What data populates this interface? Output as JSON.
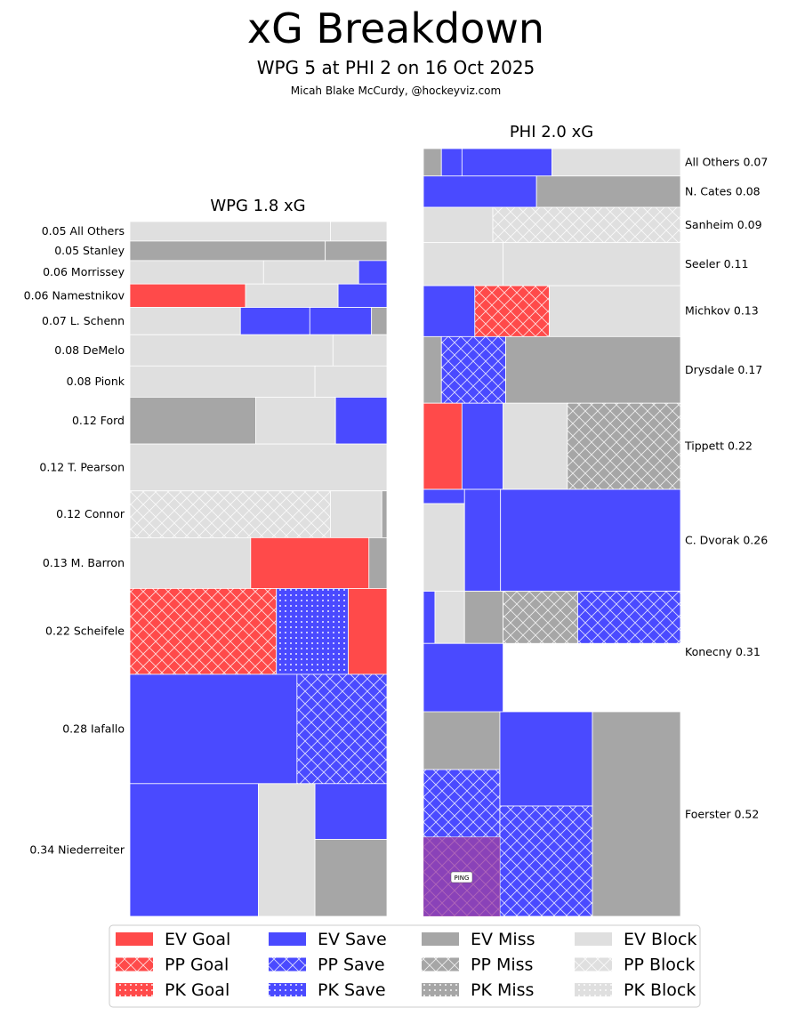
{
  "chart_data": {
    "type": "treemap",
    "title": "xG Breakdown",
    "subtitle": "WPG 5 at PHI 2 on 16 Oct 2025",
    "credit": "Micah Blake McCurdy, @hockeyviz.com",
    "annotation": "PING",
    "colors": {
      "goal": "#ff4a4a",
      "save": "#4a4aff",
      "miss": "#a6a6a6",
      "block": "#dfdfdf",
      "ping_overlay": "#a040a0"
    },
    "legend": [
      {
        "label": "EV Goal",
        "kind": "goal",
        "strength": "EV"
      },
      {
        "label": "EV Save",
        "kind": "save",
        "strength": "EV"
      },
      {
        "label": "EV Miss",
        "kind": "miss",
        "strength": "EV"
      },
      {
        "label": "EV Block",
        "kind": "block",
        "strength": "EV"
      },
      {
        "label": "PP Goal",
        "kind": "goal",
        "strength": "PP"
      },
      {
        "label": "PP Save",
        "kind": "save",
        "strength": "PP"
      },
      {
        "label": "PP Miss",
        "kind": "miss",
        "strength": "PP"
      },
      {
        "label": "PP Block",
        "kind": "block",
        "strength": "PP"
      },
      {
        "label": "PK Goal",
        "kind": "goal",
        "strength": "PK"
      },
      {
        "label": "PK Save",
        "kind": "save",
        "strength": "PK"
      },
      {
        "label": "PK Miss",
        "kind": "miss",
        "strength": "PK"
      },
      {
        "label": "PK Block",
        "kind": "block",
        "strength": "PK"
      }
    ],
    "teams": [
      {
        "side": "left",
        "title": "WPG 1.8 xG",
        "total_xg": 1.8,
        "players": [
          {
            "name": "All Others",
            "label": "0.05 All Others",
            "xg": 0.05,
            "shots": [
              {
                "type": "block",
                "str": "EV",
                "w": 0.78
              },
              {
                "type": "block",
                "str": "EV",
                "w": 0.22
              }
            ]
          },
          {
            "name": "Stanley",
            "label": "0.05 Stanley",
            "xg": 0.05,
            "shots": [
              {
                "type": "miss",
                "str": "EV",
                "w": 0.76
              },
              {
                "type": "miss",
                "str": "EV",
                "w": 0.24
              }
            ]
          },
          {
            "name": "Morrissey",
            "label": "0.06 Morrissey",
            "xg": 0.06,
            "shots": [
              {
                "type": "block",
                "str": "EV",
                "w": 0.52
              },
              {
                "type": "block",
                "str": "EV",
                "w": 0.37
              },
              {
                "type": "save",
                "str": "EV",
                "w": 0.11
              }
            ]
          },
          {
            "name": "Namestnikov",
            "label": "0.06 Namestnikov",
            "xg": 0.06,
            "shots": [
              {
                "type": "goal",
                "str": "EV",
                "w": 0.45
              },
              {
                "type": "block",
                "str": "EV",
                "w": 0.36
              },
              {
                "type": "save",
                "str": "EV",
                "w": 0.19
              }
            ]
          },
          {
            "name": "L. Schenn",
            "label": "0.07 L. Schenn",
            "xg": 0.07,
            "shots": [
              {
                "type": "block",
                "str": "EV",
                "w": 0.43
              },
              {
                "type": "save",
                "str": "EV",
                "w": 0.27
              },
              {
                "type": "save",
                "str": "EV",
                "w": 0.24
              },
              {
                "type": "miss",
                "str": "EV",
                "w": 0.06
              }
            ]
          },
          {
            "name": "DeMelo",
            "label": "0.08 DeMelo",
            "xg": 0.08,
            "shots": [
              {
                "type": "block",
                "str": "EV",
                "w": 0.79
              },
              {
                "type": "block",
                "str": "EV",
                "w": 0.21
              }
            ]
          },
          {
            "name": "Pionk",
            "label": "0.08 Pionk",
            "xg": 0.08,
            "shots": [
              {
                "type": "block",
                "str": "EV",
                "w": 0.72
              },
              {
                "type": "block",
                "str": "EV",
                "w": 0.28
              }
            ]
          },
          {
            "name": "Ford",
            "label": "0.12 Ford",
            "xg": 0.12,
            "shots": [
              {
                "type": "miss",
                "str": "EV",
                "w": 0.49
              },
              {
                "type": "block",
                "str": "EV",
                "w": 0.31
              },
              {
                "type": "save",
                "str": "EV",
                "w": 0.2
              }
            ]
          },
          {
            "name": "T. Pearson",
            "label": "0.12 T. Pearson",
            "xg": 0.12,
            "shots": [
              {
                "type": "block",
                "str": "EV",
                "w": 1.0
              }
            ]
          },
          {
            "name": "Connor",
            "label": "0.12 Connor",
            "xg": 0.12,
            "shots": [
              {
                "type": "block",
                "str": "PP",
                "w": 0.78
              },
              {
                "type": "block",
                "str": "EV",
                "w": 0.2
              },
              {
                "type": "miss",
                "str": "EV",
                "w": 0.02
              }
            ]
          },
          {
            "name": "M. Barron",
            "label": "0.13 M. Barron",
            "xg": 0.13,
            "shots": [
              {
                "type": "block",
                "str": "EV",
                "w": 0.47
              },
              {
                "type": "goal",
                "str": "EV",
                "w": 0.46
              },
              {
                "type": "miss",
                "str": "EV",
                "w": 0.07
              }
            ]
          },
          {
            "name": "Scheifele",
            "label": "0.22 Scheifele",
            "xg": 0.22,
            "shots": [
              {
                "type": "goal",
                "str": "PP",
                "w": 0.57
              },
              {
                "type": "save",
                "str": "PK",
                "w": 0.28
              },
              {
                "type": "goal",
                "str": "EV",
                "w": 0.15
              }
            ]
          },
          {
            "name": "Iafallo",
            "label": "0.28 Iafallo",
            "xg": 0.28,
            "shots": [
              {
                "type": "save",
                "str": "EV",
                "w": 0.65
              },
              {
                "type": "save",
                "str": "PP",
                "w": 0.35
              }
            ]
          },
          {
            "name": "Niederreiter",
            "label": "0.34 Niederreiter",
            "xg": 0.34,
            "shots": [
              {
                "type": "save",
                "str": "EV",
                "w": 0.5
              },
              {
                "type": "block",
                "str": "EV",
                "w": 0.22
              },
              {
                "type": "save",
                "str": "EV",
                "w": 0.28,
                "split": 0.42,
                "under": "miss"
              }
            ]
          }
        ]
      },
      {
        "side": "right",
        "title": "PHI 2.0 xG",
        "total_xg": 2.0,
        "players": [
          {
            "name": "All Others",
            "label": "All Others 0.07",
            "xg": 0.07,
            "shots": [
              {
                "type": "miss",
                "str": "EV",
                "w": 0.07
              },
              {
                "type": "save",
                "str": "EV",
                "w": 0.08
              },
              {
                "type": "save",
                "str": "EV",
                "w": 0.35
              },
              {
                "type": "block",
                "str": "EV",
                "w": 0.5
              }
            ]
          },
          {
            "name": "N. Cates",
            "label": "N. Cates 0.08",
            "xg": 0.08,
            "shots": [
              {
                "type": "save",
                "str": "EV",
                "w": 0.44
              },
              {
                "type": "miss",
                "str": "EV",
                "w": 0.56
              }
            ]
          },
          {
            "name": "Sanheim",
            "label": "Sanheim 0.09",
            "xg": 0.09,
            "shots": [
              {
                "type": "block",
                "str": "EV",
                "w": 0.27
              },
              {
                "type": "block",
                "str": "PP",
                "w": 0.73
              }
            ]
          },
          {
            "name": "Seeler",
            "label": "Seeler 0.11",
            "xg": 0.11,
            "shots": [
              {
                "type": "block",
                "str": "EV",
                "w": 0.31
              },
              {
                "type": "block",
                "str": "EV",
                "w": 0.69
              }
            ]
          },
          {
            "name": "Michkov",
            "label": "Michkov 0.13",
            "xg": 0.13,
            "shots": [
              {
                "type": "save",
                "str": "EV",
                "w": 0.2
              },
              {
                "type": "goal",
                "str": "PP",
                "w": 0.29
              },
              {
                "type": "block",
                "str": "EV",
                "w": 0.51
              }
            ]
          },
          {
            "name": "Drysdale",
            "label": "Drysdale 0.17",
            "xg": 0.17,
            "shots": [
              {
                "type": "miss",
                "str": "EV",
                "w": 0.07
              },
              {
                "type": "save",
                "str": "PP",
                "w": 0.25
              },
              {
                "type": "miss",
                "str": "EV",
                "w": 0.68
              }
            ]
          },
          {
            "name": "Tippett",
            "label": "Tippett 0.22",
            "xg": 0.22,
            "shots": [
              {
                "type": "goal",
                "str": "EV",
                "w": 0.15
              },
              {
                "type": "save",
                "str": "EV",
                "w": 0.16
              },
              {
                "type": "block",
                "str": "EV",
                "w": 0.25
              },
              {
                "type": "miss",
                "str": "PP",
                "w": 0.44
              }
            ]
          },
          {
            "name": "C. Dvorak",
            "label": "C. Dvorak 0.26",
            "xg": 0.26,
            "shots": [
              {
                "type": "save",
                "str": "EV",
                "w": 0.16,
                "split": 0.14,
                "under": "block"
              },
              {
                "type": "save",
                "str": "EV",
                "w": 0.14
              },
              {
                "type": "save",
                "str": "EV",
                "w": 0.7
              }
            ]
          },
          {
            "name": "Konecny",
            "label": "Konecny 0.31",
            "xg": 0.31,
            "shots": [
              {
                "type": "save",
                "str": "EV",
                "w": 0.045
              },
              {
                "type": "block",
                "str": "EV",
                "w": 0.115
              },
              {
                "type": "miss",
                "str": "EV",
                "w": 0.15
              },
              {
                "type": "miss",
                "str": "PP",
                "w": 0.29
              },
              {
                "type": "save",
                "str": "PP",
                "w": 0.4
              }
            ],
            "bottom_strip": {
              "type": "save",
              "str": "EV",
              "w": 0.31,
              "h": 0.57
            }
          },
          {
            "name": "Foerster",
            "label": "Foerster 0.52",
            "xg": 0.52,
            "shots": [
              {
                "type": "miss",
                "str": "EV",
                "w": 0.3
              },
              {
                "type": "save",
                "str": "EV",
                "w": 0.36
              },
              {
                "type": "miss",
                "str": "EV",
                "w": 0.34
              }
            ]
          }
        ]
      }
    ]
  }
}
